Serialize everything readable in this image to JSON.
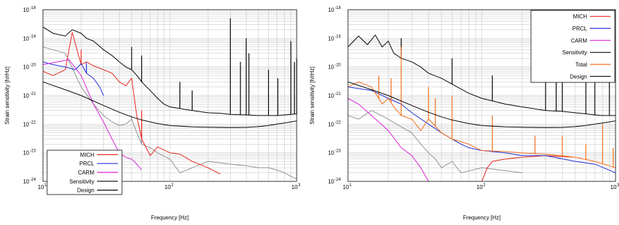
{
  "chart_data": [
    {
      "type": "line",
      "xscale": "log",
      "yscale": "log",
      "xlim": [
        10,
        1000
      ],
      "ylim": [
        1e-24,
        1e-18
      ],
      "xlabel": "Frequency [Hz]",
      "ylabel": "Strain sensitivity [h/rHz]",
      "x_ticks": [
        {
          "value": 10,
          "exp": "1"
        },
        {
          "value": 100,
          "exp": "2"
        },
        {
          "value": 1000,
          "exp": "3"
        }
      ],
      "y_ticks": [
        {
          "value": 1e-18,
          "exp": "-18"
        },
        {
          "value": 1e-19,
          "exp": "-19"
        },
        {
          "value": 1e-20,
          "exp": "-20"
        },
        {
          "value": 1e-21,
          "exp": "-21"
        },
        {
          "value": 1e-22,
          "exp": "-22"
        },
        {
          "value": 1e-23,
          "exp": "-23"
        },
        {
          "value": 1e-24,
          "exp": "-24"
        }
      ],
      "tick_base": "10",
      "grid": true,
      "legend_position": "bottom-left",
      "series": [
        {
          "name": "MICH",
          "color": "#e8201a",
          "x": [
            10,
            12,
            15,
            17,
            20,
            22,
            25,
            30,
            35,
            40,
            45,
            50,
            55,
            60,
            70,
            80,
            100,
            120,
            150,
            200,
            250
          ],
          "y": [
            7e-21,
            5e-21,
            8e-21,
            1.6e-19,
            1.2e-20,
            1.5e-20,
            1.1e-20,
            8e-21,
            6e-21,
            3e-21,
            2.2e-21,
            4e-21,
            1.8e-22,
            3e-23,
            8e-24,
            1.6e-23,
            1e-23,
            9e-24,
            5e-24,
            3e-24,
            1.8e-24
          ],
          "spikes": [
            [
              17,
              1.6e-19
            ],
            [
              20,
              4e-20
            ],
            [
              50,
              4e-21
            ],
            [
              60,
              3e-22
            ]
          ]
        },
        {
          "name": "PRCL",
          "color": "#1c2bd6",
          "x": [
            10,
            12,
            15,
            18,
            20,
            22,
            25,
            28,
            30
          ],
          "y": [
            1.5e-20,
            1.2e-20,
            1e-20,
            8e-21,
            1.3e-20,
            6e-21,
            4e-21,
            2e-21,
            1e-21
          ],
          "spikes": [
            [
              22,
              1.4e-20
            ]
          ]
        },
        {
          "name": "CARM",
          "color": "#d81fd8",
          "x": [
            10,
            13,
            16,
            20,
            25,
            30,
            35,
            40,
            45,
            50,
            55,
            60
          ],
          "y": [
            1.2e-20,
            1.5e-20,
            1.8e-20,
            5e-21,
            5e-22,
            1.2e-22,
            3e-23,
            1e-23,
            7e-24,
            6e-24,
            4e-24,
            2.5e-24
          ],
          "spikes": []
        },
        {
          "name": "Sensitivity",
          "color": "#000000",
          "x": [
            10,
            12,
            15,
            17,
            20,
            22,
            25,
            30,
            35,
            40,
            45,
            50,
            55,
            60,
            70,
            80,
            90,
            100,
            120,
            150,
            200,
            250,
            300,
            400,
            500,
            600,
            700,
            800,
            900,
            1000
          ],
          "y": [
            2.5e-19,
            1.5e-19,
            1.2e-19,
            2e-19,
            1.5e-19,
            1e-19,
            8e-20,
            4e-20,
            2.5e-20,
            1.5e-20,
            1e-20,
            8e-21,
            5e-21,
            3e-21,
            1.5e-21,
            8e-22,
            5e-22,
            4e-22,
            3.5e-22,
            3e-22,
            2.5e-22,
            2.4e-22,
            2.2e-22,
            2.1e-22,
            2e-22,
            2e-22,
            2e-22,
            2.1e-22,
            2.2e-22,
            2.3e-22
          ],
          "spikes": [
            [
              17,
              2e-19
            ],
            [
              50,
              5e-20
            ],
            [
              60,
              2.5e-20
            ],
            [
              120,
              3e-21
            ],
            [
              150,
              1.5e-21
            ],
            [
              300,
              5e-19
            ],
            [
              360,
              1.5e-20
            ],
            [
              400,
              1e-19
            ],
            [
              420,
              3e-20
            ],
            [
              600,
              8e-21
            ],
            [
              710,
              4e-21
            ],
            [
              900,
              8e-20
            ],
            [
              960,
              1.5e-20
            ],
            [
              1000,
              2e-20
            ]
          ]
        },
        {
          "name": "Design",
          "color": "#000000",
          "x": [
            10,
            15,
            20,
            30,
            40,
            50,
            60,
            80,
            100,
            150,
            200,
            300,
            400,
            500,
            600,
            700,
            800,
            900,
            1000
          ],
          "y": [
            3e-21,
            1.6e-21,
            1e-21,
            4.5e-22,
            2.6e-22,
            1.8e-22,
            1.4e-22,
            1.05e-22,
            9e-23,
            8e-23,
            7.8e-23,
            7.6e-23,
            7.7e-23,
            8.2e-23,
            9e-23,
            1e-22,
            1.1e-22,
            1.2e-22,
            1.3e-22
          ],
          "spikes": []
        },
        {
          "name": "",
          "color": "#909090",
          "x": [
            10,
            12,
            15,
            20,
            25,
            30,
            35,
            40,
            45,
            50,
            55,
            60,
            70,
            80,
            100,
            120,
            150,
            200,
            300,
            400,
            500,
            600,
            700,
            800,
            900,
            1000
          ],
          "y": [
            5e-20,
            4e-20,
            3e-20,
            2e-21,
            5e-22,
            2e-22,
            1.2e-22,
            9e-23,
            1e-22,
            1.5e-22,
            5e-23,
            2e-23,
            1.5e-23,
            1e-23,
            6e-24,
            2e-24,
            3e-24,
            5e-24,
            4e-24,
            3.5e-24,
            3e-24,
            3e-24,
            2.5e-24,
            2e-24,
            1.5e-24,
            1.2e-24
          ],
          "spikes": [
            [
              50,
              2e-22
            ],
            [
              60,
              8e-23
            ]
          ]
        }
      ]
    },
    {
      "type": "line",
      "xscale": "log",
      "yscale": "log",
      "xlim": [
        10,
        1000
      ],
      "ylim": [
        1e-24,
        1e-18
      ],
      "xlabel": "Frequency [Hz]",
      "ylabel": "Strain sensitivity [h/rHz]",
      "x_ticks": [
        {
          "value": 10,
          "exp": "1"
        },
        {
          "value": 100,
          "exp": "2"
        },
        {
          "value": 1000,
          "exp": "3"
        }
      ],
      "y_ticks": [
        {
          "value": 1e-18,
          "exp": "-18"
        },
        {
          "value": 1e-19,
          "exp": "-19"
        },
        {
          "value": 1e-20,
          "exp": "-20"
        },
        {
          "value": 1e-21,
          "exp": "-21"
        },
        {
          "value": 1e-22,
          "exp": "-22"
        },
        {
          "value": 1e-23,
          "exp": "-23"
        },
        {
          "value": 1e-24,
          "exp": "-24"
        }
      ],
      "tick_base": "10",
      "grid": true,
      "legend_position": "top-right",
      "series": [
        {
          "name": "MICH",
          "color": "#e8201a",
          "x": [
            100,
            110,
            120,
            150,
            200,
            300,
            500
          ],
          "y": [
            1e-24,
            3e-24,
            5e-24,
            6e-24,
            7e-24,
            8e-24,
            7e-24
          ],
          "spikes": []
        },
        {
          "name": "PRCL",
          "color": "#1c2bd6",
          "x": [
            10,
            15,
            20,
            25,
            30,
            40,
            50,
            60,
            70,
            80,
            100,
            150,
            200,
            300,
            500,
            700,
            1000
          ],
          "y": [
            2e-21,
            1.5e-21,
            8e-22,
            5e-22,
            2.5e-22,
            1e-22,
            5e-23,
            3e-23,
            2e-23,
            1.5e-23,
            1.2e-23,
            1e-23,
            8e-24,
            8e-24,
            5e-24,
            4e-24,
            2e-24
          ],
          "spikes": []
        },
        {
          "name": "CARM",
          "color": "#d81fd8",
          "x": [
            10,
            12,
            15,
            20,
            25,
            30,
            35,
            40
          ],
          "y": [
            8e-22,
            5e-22,
            2e-22,
            6e-23,
            1.5e-23,
            8e-24,
            3e-24,
            1e-24
          ],
          "spikes": []
        },
        {
          "name": "Sensitivity",
          "color": "#000000",
          "x": [
            10,
            12,
            14,
            16,
            18,
            20,
            22,
            25,
            30,
            35,
            40,
            50,
            60,
            80,
            100,
            150,
            200,
            300,
            400,
            500,
            600,
            700,
            800,
            1000
          ],
          "y": [
            5e-20,
            1.2e-19,
            6e-20,
            1.3e-19,
            5e-20,
            8e-20,
            3e-20,
            2e-20,
            1.5e-20,
            1e-20,
            6e-21,
            4e-21,
            2.5e-21,
            1.2e-21,
            8e-22,
            5e-22,
            4e-22,
            3e-22,
            2.8e-22,
            2.5e-22,
            2.3e-22,
            2.1e-22,
            2e-22,
            2e-22
          ],
          "spikes": [
            [
              25,
              1e-19
            ],
            [
              60,
              2e-20
            ],
            [
              120,
              5e-21
            ],
            [
              300,
              5e-19
            ],
            [
              360,
              2e-20
            ],
            [
              400,
              1e-19
            ],
            [
              600,
              8e-21
            ],
            [
              700,
              3e-21
            ],
            [
              900,
              8e-20
            ]
          ]
        },
        {
          "name": "Total",
          "color": "#f36b18",
          "x": [
            10,
            12,
            15,
            18,
            20,
            22,
            25,
            30,
            35,
            40,
            50,
            60,
            80,
            100,
            150,
            200,
            300,
            500,
            700,
            1000
          ],
          "y": [
            2e-21,
            3e-21,
            2e-21,
            5e-22,
            8e-22,
            4e-22,
            2e-22,
            1.5e-22,
            6e-23,
            1.5e-22,
            5e-23,
            3e-23,
            2e-23,
            1.2e-23,
            1.1e-23,
            1e-23,
            9e-24,
            7e-24,
            5e-24,
            3e-24
          ],
          "spikes": [
            [
              17,
              5e-21
            ],
            [
              21,
              4e-21
            ],
            [
              25,
              5e-20
            ],
            [
              40,
              2e-21
            ],
            [
              45,
              8e-22
            ],
            [
              60,
              1e-21
            ],
            [
              120,
              2e-22
            ],
            [
              250,
              4e-23
            ],
            [
              400,
              4e-23
            ],
            [
              600,
              2e-23
            ],
            [
              800,
              1e-22
            ],
            [
              960,
              1.5e-23
            ]
          ]
        },
        {
          "name": "Design",
          "color": "#000000",
          "x": [
            10,
            15,
            20,
            30,
            40,
            50,
            60,
            80,
            100,
            150,
            200,
            300,
            400,
            500,
            600,
            700,
            800,
            900,
            1000
          ],
          "y": [
            3e-21,
            1.6e-21,
            1e-21,
            4.5e-22,
            2.6e-22,
            1.8e-22,
            1.4e-22,
            1.05e-22,
            9e-23,
            8e-23,
            7.8e-23,
            7.6e-23,
            7.7e-23,
            8.2e-23,
            9e-23,
            1e-22,
            1.1e-22,
            1.2e-22,
            1.3e-22
          ],
          "spikes": []
        },
        {
          "name": "",
          "color": "#909090",
          "x": [
            10,
            12,
            15,
            20,
            25,
            30,
            35,
            40,
            45,
            50,
            60,
            70,
            100,
            200
          ],
          "y": [
            2e-22,
            1.5e-22,
            3e-22,
            1.5e-22,
            8e-23,
            5e-23,
            2e-23,
            1e-23,
            6e-24,
            3e-24,
            5e-24,
            2e-24,
            3e-24,
            2e-24
          ],
          "spikes": []
        }
      ]
    }
  ]
}
